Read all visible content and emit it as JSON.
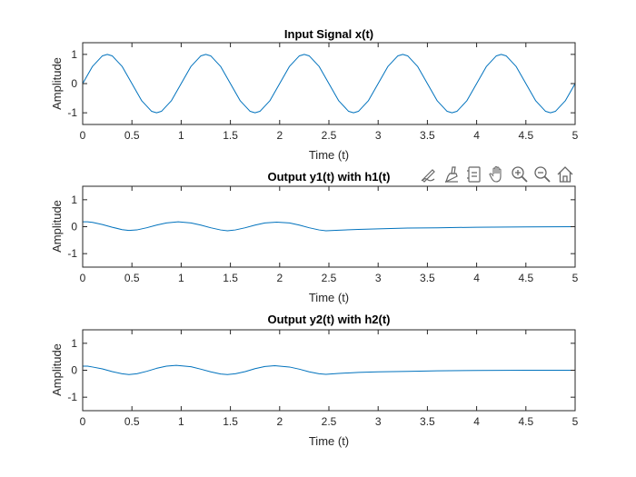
{
  "figure": {
    "toolbar": {
      "buttons": [
        {
          "name": "edit-plot-icon"
        },
        {
          "name": "brush-icon"
        },
        {
          "name": "data-tips-icon"
        },
        {
          "name": "pan-hand-icon"
        },
        {
          "name": "zoom-in-icon"
        },
        {
          "name": "zoom-out-icon"
        },
        {
          "name": "home-restore-icon"
        }
      ]
    }
  },
  "chart_data": [
    {
      "type": "line",
      "title": "Input Signal x(t)",
      "xlabel": "Time (t)",
      "ylabel": "Amplitude",
      "xlim": [
        0,
        5
      ],
      "ylim": [
        -1.4,
        1.4
      ],
      "xticks": [
        0,
        0.5,
        1,
        1.5,
        2,
        2.5,
        3,
        3.5,
        4,
        4.5,
        5
      ],
      "xtick_labels": [
        "0",
        "0.5",
        "1",
        "1.5",
        "2",
        "2.5",
        "3",
        "3.5",
        "4",
        "4.5",
        "5"
      ],
      "yticks": [
        -1,
        0,
        1
      ],
      "ytick_labels": [
        "-1",
        "0",
        "1"
      ],
      "line_color": "#0072BD",
      "series": [
        {
          "x": [
            0,
            0.1,
            0.2,
            0.25,
            0.3,
            0.4,
            0.5,
            0.6,
            0.7,
            0.75,
            0.8,
            0.9,
            1.0,
            1.1,
            1.2,
            1.25,
            1.3,
            1.4,
            1.5,
            1.6,
            1.7,
            1.75,
            1.8,
            1.9,
            2.0,
            2.1,
            2.2,
            2.25,
            2.3,
            2.4,
            2.5,
            2.6,
            2.7,
            2.75,
            2.8,
            2.9,
            3.0,
            3.1,
            3.2,
            3.25,
            3.3,
            3.4,
            3.5,
            3.6,
            3.7,
            3.75,
            3.8,
            3.9,
            4.0,
            4.1,
            4.2,
            4.25,
            4.3,
            4.4,
            4.5,
            4.6,
            4.7,
            4.75,
            4.8,
            4.9,
            5.0
          ],
          "y": [
            0,
            0.59,
            0.95,
            1,
            0.95,
            0.59,
            0,
            -0.59,
            -0.95,
            -1,
            -0.95,
            -0.59,
            0,
            0.59,
            0.95,
            1,
            0.95,
            0.59,
            0,
            -0.59,
            -0.95,
            -1,
            -0.95,
            -0.59,
            0,
            0.59,
            0.95,
            1,
            0.95,
            0.59,
            0,
            -0.59,
            -0.95,
            -1,
            -0.95,
            -0.59,
            0,
            0.59,
            0.95,
            1,
            0.95,
            0.59,
            0,
            -0.59,
            -0.95,
            -1,
            -0.95,
            -0.59,
            0,
            0.59,
            0.95,
            1,
            0.95,
            0.59,
            0,
            -0.59,
            -0.95,
            -1,
            -0.95,
            -0.59,
            0
          ]
        }
      ]
    },
    {
      "type": "line",
      "title": "Output y1(t) with h1(t)",
      "xlabel": "Time (t)",
      "ylabel": "Amplitude",
      "xlim": [
        0,
        5
      ],
      "ylim": [
        -1.5,
        1.5
      ],
      "xticks": [
        0,
        0.5,
        1,
        1.5,
        2,
        2.5,
        3,
        3.5,
        4,
        4.5,
        5
      ],
      "xtick_labels": [
        "0",
        "0.5",
        "1",
        "1.5",
        "2",
        "2.5",
        "3",
        "3.5",
        "4",
        "4.5",
        "5"
      ],
      "yticks": [
        -1,
        0,
        1
      ],
      "ytick_labels": [
        "-1",
        "0",
        "1"
      ],
      "line_color": "#0072BD",
      "series": [
        {
          "x": [
            0,
            0.05,
            0.1,
            0.2,
            0.3,
            0.4,
            0.47,
            0.55,
            0.65,
            0.75,
            0.85,
            0.97,
            1.1,
            1.2,
            1.3,
            1.4,
            1.47,
            1.55,
            1.65,
            1.75,
            1.85,
            1.97,
            2.1,
            2.2,
            2.3,
            2.4,
            2.47,
            2.6,
            2.8,
            3.0,
            3.3,
            3.6,
            4.0,
            4.5,
            5.0
          ],
          "y": [
            0.18,
            0.18,
            0.16,
            0.08,
            -0.02,
            -0.11,
            -0.14,
            -0.12,
            -0.04,
            0.06,
            0.14,
            0.18,
            0.14,
            0.06,
            -0.04,
            -0.12,
            -0.15,
            -0.12,
            -0.04,
            0.06,
            0.14,
            0.17,
            0.14,
            0.06,
            -0.04,
            -0.12,
            -0.15,
            -0.13,
            -0.1,
            -0.08,
            -0.05,
            -0.04,
            -0.02,
            -0.01,
            0
          ]
        }
      ]
    },
    {
      "type": "line",
      "title": "Output y2(t) with h2(t)",
      "xlabel": "Time (t)",
      "ylabel": "Amplitude",
      "xlim": [
        0,
        5
      ],
      "ylim": [
        -1.5,
        1.5
      ],
      "xticks": [
        0,
        0.5,
        1,
        1.5,
        2,
        2.5,
        3,
        3.5,
        4,
        4.5,
        5
      ],
      "xtick_labels": [
        "0",
        "0.5",
        "1",
        "1.5",
        "2",
        "2.5",
        "3",
        "3.5",
        "4",
        "4.5",
        "5"
      ],
      "yticks": [
        -1,
        0,
        1
      ],
      "ytick_labels": [
        "-1",
        "0",
        "1"
      ],
      "line_color": "#0072BD",
      "series": [
        {
          "x": [
            0,
            0.05,
            0.1,
            0.2,
            0.3,
            0.4,
            0.47,
            0.55,
            0.65,
            0.75,
            0.85,
            0.95,
            1.1,
            1.2,
            1.3,
            1.4,
            1.47,
            1.55,
            1.65,
            1.75,
            1.85,
            1.95,
            2.1,
            2.2,
            2.3,
            2.4,
            2.47,
            2.6,
            2.8,
            3.0,
            3.3,
            3.6,
            4.0,
            4.5,
            5.0
          ],
          "y": [
            0.15,
            0.15,
            0.12,
            0.05,
            -0.05,
            -0.13,
            -0.16,
            -0.13,
            -0.04,
            0.07,
            0.15,
            0.18,
            0.13,
            0.04,
            -0.06,
            -0.14,
            -0.16,
            -0.13,
            -0.05,
            0.06,
            0.14,
            0.17,
            0.12,
            0.04,
            -0.06,
            -0.13,
            -0.15,
            -0.12,
            -0.08,
            -0.06,
            -0.04,
            -0.02,
            -0.01,
            0,
            0
          ]
        }
      ]
    }
  ]
}
